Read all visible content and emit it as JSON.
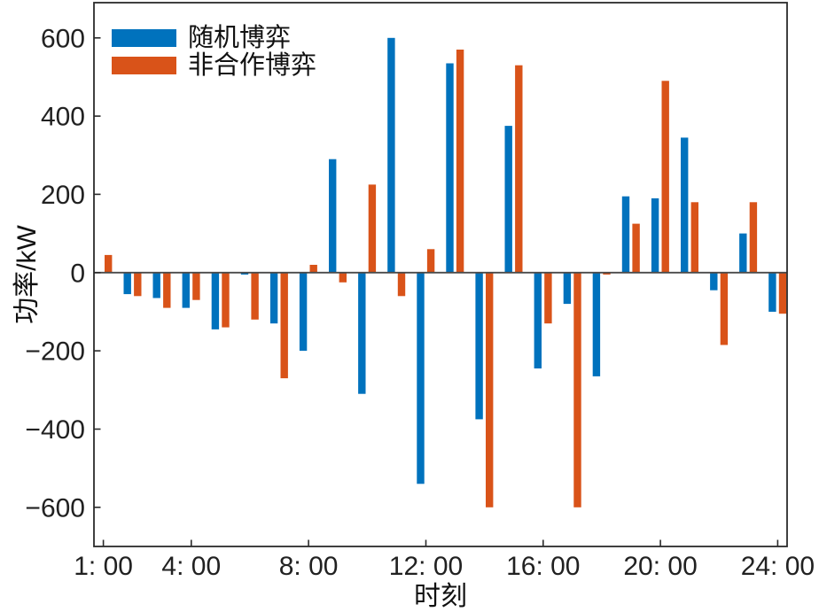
{
  "chart_data": {
    "type": "bar",
    "title": "",
    "xlabel": "时刻",
    "ylabel": "功率/kW",
    "x": [
      1,
      2,
      3,
      4,
      5,
      6,
      7,
      8,
      9,
      10,
      11,
      12,
      13,
      14,
      15,
      16,
      17,
      18,
      19,
      20,
      21,
      22,
      23,
      24
    ],
    "series": [
      {
        "name": "随机博弈",
        "color": "#0072BD",
        "values": [
          0,
          -55,
          -65,
          -90,
          -145,
          -5,
          -130,
          -200,
          290,
          -310,
          600,
          -540,
          535,
          -375,
          375,
          -245,
          -80,
          -265,
          195,
          190,
          345,
          -45,
          100,
          -100
        ]
      },
      {
        "name": "非合作博弈",
        "color": "#D95319",
        "values": [
          45,
          -60,
          -90,
          -70,
          -140,
          -120,
          -270,
          20,
          -25,
          225,
          -60,
          60,
          570,
          -600,
          530,
          -130,
          -600,
          -5,
          125,
          490,
          180,
          -185,
          180,
          -105
        ]
      }
    ],
    "x_ticks": [
      {
        "value": 1,
        "label": "1: 00"
      },
      {
        "value": 4,
        "label": "4: 00"
      },
      {
        "value": 8,
        "label": "8: 00"
      },
      {
        "value": 12,
        "label": "12: 00"
      },
      {
        "value": 16,
        "label": "16: 00"
      },
      {
        "value": 20,
        "label": "20: 00"
      },
      {
        "value": 24,
        "label": "24: 00"
      }
    ],
    "y_ticks": [
      {
        "value": 600,
        "label": "600"
      },
      {
        "value": 400,
        "label": "400"
      },
      {
        "value": 200,
        "label": "200"
      },
      {
        "value": 0,
        "label": "0"
      },
      {
        "value": -200,
        "label": "−200"
      },
      {
        "value": -400,
        "label": "−400"
      },
      {
        "value": -600,
        "label": "−600"
      }
    ],
    "xlim": [
      0.68,
      24.32
    ],
    "ylim": [
      -700,
      690
    ],
    "grid": false,
    "legend_position": "top-left",
    "colors": {
      "axis": "#2b2b2b",
      "zero_line": "#4a4a4a",
      "tick_text": "#212121"
    }
  }
}
